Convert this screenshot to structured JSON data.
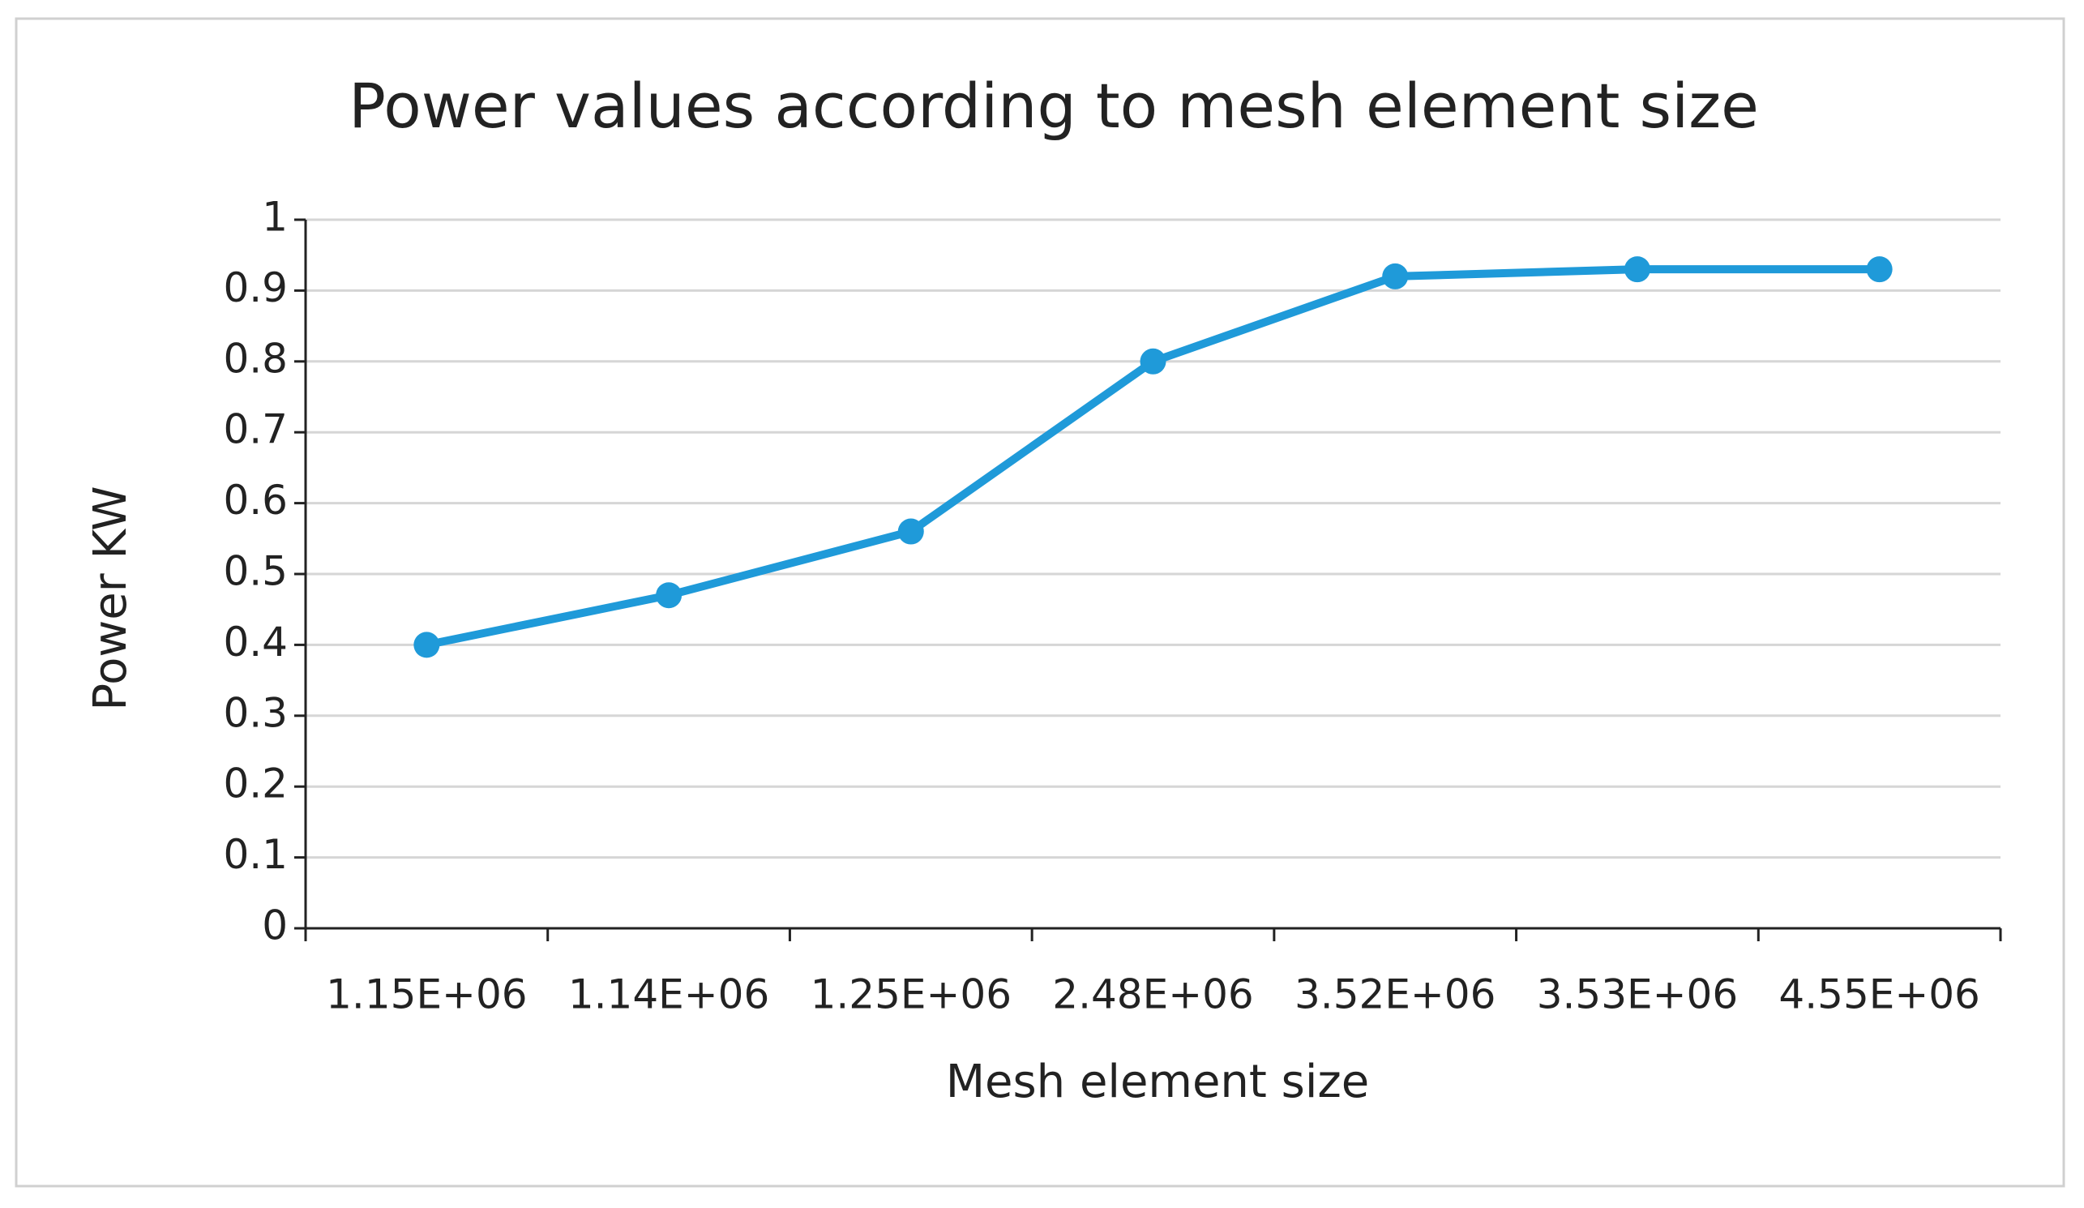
{
  "chart_data": {
    "type": "line",
    "title": "Power values according to mesh element size",
    "x_label": "Mesh element size",
    "y_label": "Power KW",
    "categories": [
      "1.15E+06",
      "1.14E+06",
      "1.25E+06",
      "2.48E+06",
      "3.52E+06",
      "3.53E+06",
      "4.55E+06"
    ],
    "values": [
      0.4,
      0.47,
      0.56,
      0.8,
      0.92,
      0.93,
      0.93
    ],
    "color": "#1f9ad9",
    "ylim": [
      0,
      1
    ],
    "yticks": [
      0,
      0.1,
      0.2,
      0.3,
      0.4,
      0.5,
      0.6,
      0.7,
      0.8,
      0.9,
      1
    ],
    "grid": true
  }
}
